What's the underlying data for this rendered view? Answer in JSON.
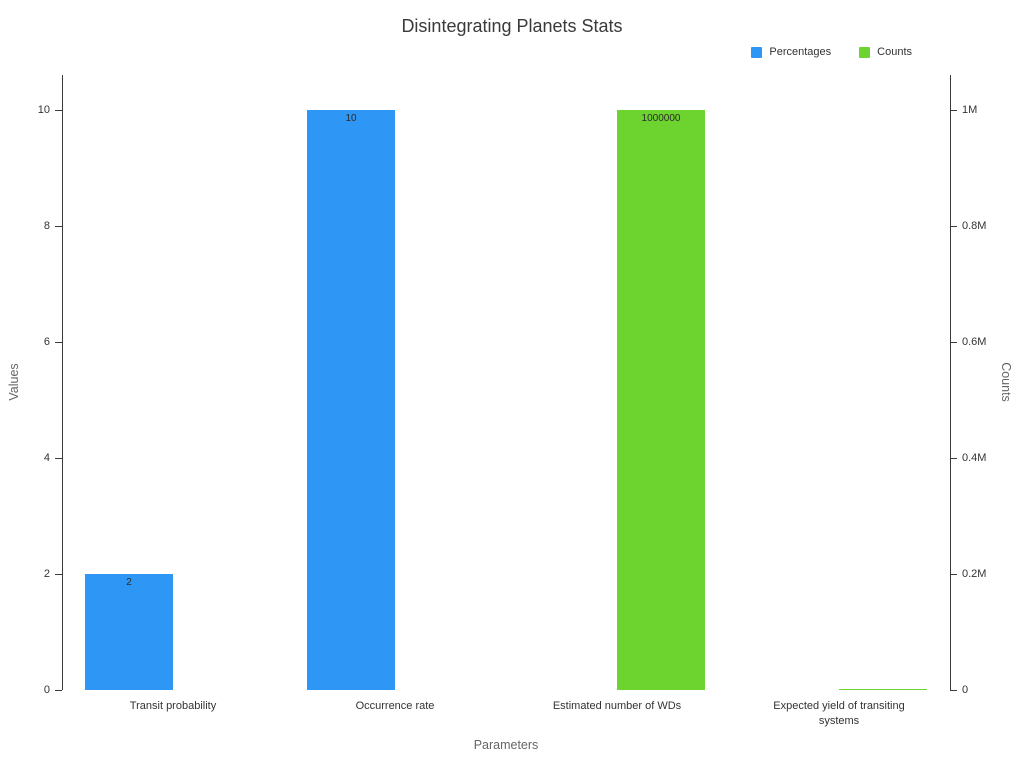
{
  "title": "Disintegrating Planets Stats",
  "colors": {
    "percentages": "#2E96F5",
    "counts": "#6DD32E",
    "axis": "#3a3a3a",
    "text": "#333333"
  },
  "chart_data": {
    "type": "bar",
    "title": "Disintegrating Planets Stats",
    "xlabel": "Parameters",
    "grid": false,
    "legend_position": "top-right",
    "categories": [
      "Transit probability",
      "Occurrence rate",
      "Estimated number of WDs",
      "Expected yield of transiting systems"
    ],
    "series": [
      {
        "name": "Percentages",
        "axis": "left",
        "color": "#2E96F5",
        "values": [
          2,
          10,
          null,
          null
        ],
        "labels": [
          "2",
          "10",
          "",
          ""
        ]
      },
      {
        "name": "Counts",
        "axis": "right",
        "color": "#6DD32E",
        "values": [
          null,
          null,
          1000000,
          2000
        ],
        "labels": [
          "",
          "",
          "1000000",
          ""
        ]
      }
    ],
    "left_axis": {
      "title": "Values",
      "tick_values": [
        0,
        2,
        4,
        6,
        8,
        10
      ],
      "tick_labels": [
        "0",
        "2",
        "4",
        "6",
        "8",
        "10"
      ],
      "range": [
        0,
        10.6
      ]
    },
    "right_axis": {
      "title": "Counts",
      "tick_values": [
        0,
        200000,
        400000,
        600000,
        800000,
        1000000
      ],
      "tick_labels": [
        "0",
        "0.2M",
        "0.4M",
        "0.6M",
        "0.8M",
        "1M"
      ],
      "range": [
        0,
        1060000
      ]
    }
  }
}
